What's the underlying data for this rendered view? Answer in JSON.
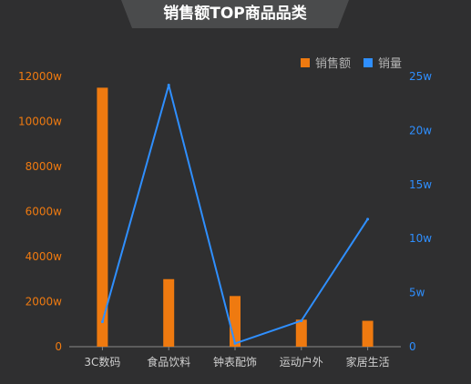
{
  "title": "销售额TOP商品品类",
  "colors": {
    "background": "#2f2f30",
    "title_tab": "#4a4b4c",
    "bar": "#ef7a10",
    "line": "#2f8fff",
    "axis": "#888888",
    "category_text": "#d0d0d0",
    "legend_text": "#b4b4b4"
  },
  "chart_data": {
    "type": "bar",
    "title": "销售额TOP商品品类",
    "categories": [
      "3C数码",
      "食品饮料",
      "钟表配饰",
      "运动户外",
      "家居生活"
    ],
    "series": [
      {
        "name": "销售额",
        "type": "bar",
        "axis": "left",
        "values": [
          11500,
          3000,
          2250,
          1200,
          1150
        ]
      },
      {
        "name": "销量",
        "type": "line",
        "axis": "right",
        "values": [
          2.3,
          24.2,
          0.3,
          2.4,
          11.8
        ]
      }
    ],
    "y_left": {
      "min": 0,
      "max": 12000,
      "ticks": [
        "0",
        "2000w",
        "4000w",
        "6000w",
        "8000w",
        "10000w",
        "12000w"
      ]
    },
    "y_right": {
      "min": 0,
      "max": 25,
      "ticks": [
        "0",
        "5w",
        "10w",
        "15w",
        "20w",
        "25w"
      ]
    },
    "grid": false,
    "legend_position": "top-right"
  }
}
